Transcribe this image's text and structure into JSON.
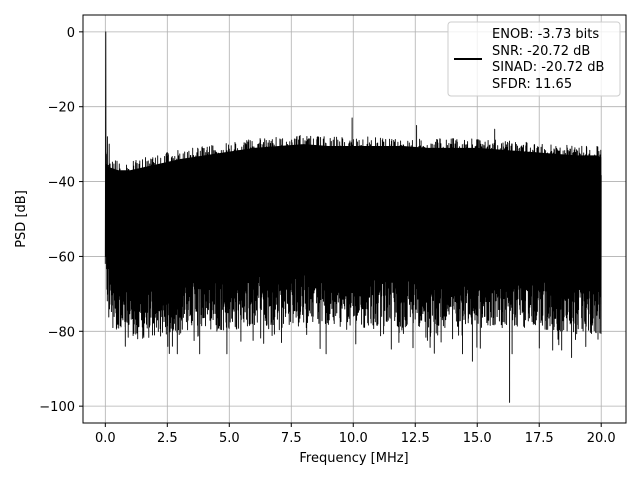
{
  "chart_data": {
    "type": "line",
    "xlabel": "Frequency [MHz]",
    "ylabel": "PSD [dB]",
    "xlim": [
      -0.9,
      21.0
    ],
    "ylim": [
      -104.5,
      4.5
    ],
    "xticks": [
      0.0,
      2.5,
      5.0,
      7.5,
      10.0,
      12.5,
      15.0,
      17.5,
      20.0
    ],
    "xtick_labels": [
      "0.0",
      "2.5",
      "5.0",
      "7.5",
      "10.0",
      "12.5",
      "15.0",
      "17.5",
      "20.0"
    ],
    "yticks": [
      0,
      -20,
      -40,
      -60,
      -80,
      -100
    ],
    "ytick_labels": [
      "0",
      "−20",
      "−40",
      "−60",
      "−80",
      "−100"
    ],
    "grid": true,
    "legend_position": "top-right",
    "series": [
      {
        "name": "ENOB: -3.73 bits\nSNR: -20.72 dB\nSINAD: -20.72 dB\nSFDR: 11.65",
        "color": "#000000",
        "legend_lines": [
          "ENOB: -3.73 bits",
          "SNR: -20.72 dB",
          "SINAD: -20.72 dB",
          "SFDR: 11.65"
        ],
        "x_range": [
          0.0,
          20.0
        ],
        "peak": {
          "x": 0.02,
          "y": 0.0
        },
        "upper_envelope": {
          "x": [
            0.05,
            0.1,
            0.5,
            1.0,
            2.0,
            3.0,
            4.0,
            5.0,
            6.0,
            7.0,
            8.0,
            9.0,
            10.0,
            11.0,
            12.0,
            13.0,
            14.0,
            15.0,
            16.0,
            17.0,
            18.0,
            19.0,
            19.8,
            20.0
          ],
          "y": [
            -28,
            -32,
            -33,
            -33,
            -31.5,
            -30,
            -29,
            -28,
            -27,
            -26.5,
            -26,
            -26.5,
            -26.5,
            -26.5,
            -26.5,
            -27,
            -27,
            -27,
            -27.5,
            -28,
            -28.5,
            -29,
            -29,
            -29.5
          ]
        },
        "lower_envelope": {
          "x": [
            0.05,
            0.5,
            1.0,
            2.0,
            3.0,
            4.0,
            5.0,
            6.0,
            7.0,
            8.0,
            9.0,
            10.0,
            11.0,
            12.0,
            13.0,
            14.0,
            15.0,
            16.0,
            17.0,
            18.0,
            19.0,
            20.0
          ],
          "y": [
            -62,
            -70,
            -71,
            -71,
            -70,
            -69,
            -69,
            -68,
            -67,
            -67,
            -68,
            -68,
            -68,
            -68,
            -68,
            -68,
            -68,
            -68,
            -68,
            -69,
            -70,
            -70
          ]
        },
        "deep_nulls": [
          {
            "x": 0.3,
            "y": -79
          },
          {
            "x": 0.8,
            "y": -84
          },
          {
            "x": 1.3,
            "y": -82
          },
          {
            "x": 1.9,
            "y": -81
          },
          {
            "x": 2.9,
            "y": -86
          },
          {
            "x": 3.8,
            "y": -86
          },
          {
            "x": 4.9,
            "y": -86
          },
          {
            "x": 5.8,
            "y": -78
          },
          {
            "x": 7.1,
            "y": -83
          },
          {
            "x": 8.1,
            "y": -79
          },
          {
            "x": 8.9,
            "y": -86
          },
          {
            "x": 10.1,
            "y": -78
          },
          {
            "x": 12.0,
            "y": -79
          },
          {
            "x": 13.4,
            "y": -81
          },
          {
            "x": 14.0,
            "y": -82
          },
          {
            "x": 14.4,
            "y": -86
          },
          {
            "x": 14.8,
            "y": -88
          },
          {
            "x": 16.0,
            "y": -79
          },
          {
            "x": 16.3,
            "y": -99
          },
          {
            "x": 16.4,
            "y": -86
          },
          {
            "x": 17.3,
            "y": -78
          },
          {
            "x": 18.4,
            "y": -85
          },
          {
            "x": 18.8,
            "y": -87
          },
          {
            "x": 19.6,
            "y": -80
          }
        ],
        "spikes": [
          {
            "x": 0.08,
            "y": -28
          },
          {
            "x": 0.15,
            "y": -30
          },
          {
            "x": 9.95,
            "y": -23
          },
          {
            "x": 12.55,
            "y": -25
          },
          {
            "x": 15.7,
            "y": -26
          }
        ]
      }
    ]
  }
}
